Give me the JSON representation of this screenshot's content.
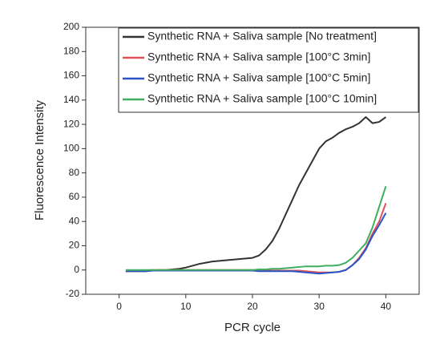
{
  "chart_data": {
    "type": "line",
    "x_label": "PCR cycle",
    "y_label": "Fluorescence Intensity",
    "xlim": [
      -5,
      45
    ],
    "xticks": [
      0,
      10,
      20,
      30,
      40
    ],
    "ylim": [
      -20,
      200
    ],
    "yticks": [
      -20,
      0,
      20,
      40,
      60,
      80,
      100,
      120,
      140,
      160,
      180,
      200
    ],
    "legend_position": "upper left",
    "x": [
      1,
      2,
      3,
      4,
      5,
      6,
      7,
      8,
      9,
      10,
      11,
      12,
      13,
      14,
      15,
      16,
      17,
      18,
      19,
      20,
      21,
      22,
      23,
      24,
      25,
      26,
      27,
      28,
      29,
      30,
      31,
      32,
      33,
      34,
      35,
      36,
      37,
      38,
      39,
      40
    ],
    "series": [
      {
        "name": "Synthetic RNA + Saliva sample [No treatment]",
        "color": "#333333",
        "values": [
          -1,
          -1,
          -1,
          -1,
          -0.5,
          0,
          0,
          0.5,
          1,
          2,
          3.5,
          5,
          6,
          7,
          7.5,
          8,
          8.5,
          9,
          9.5,
          10,
          12,
          17,
          24,
          34,
          46,
          58,
          70,
          80,
          90,
          100,
          106,
          109,
          113,
          116,
          118,
          121,
          126,
          121,
          122,
          126
        ]
      },
      {
        "name": "Synthetic RNA + Saliva sample [100°C 3min]",
        "color": "#e0505a",
        "values": [
          -1,
          -1,
          -1,
          -0.5,
          0,
          0,
          0,
          0,
          0,
          0,
          0,
          0,
          0,
          0,
          0,
          0,
          0,
          0,
          0,
          0,
          -0.5,
          -0.5,
          -0.5,
          -0.5,
          -0.5,
          -0.5,
          -0.5,
          -1,
          -1.5,
          -2,
          -2,
          -2,
          -1.5,
          0,
          4,
          10,
          18,
          30,
          40,
          55
        ]
      },
      {
        "name": "Synthetic RNA + Saliva sample [100°C 5min]",
        "color": "#2b55c7",
        "values": [
          -1,
          -1,
          -1,
          -1,
          -0.5,
          -0.5,
          -0.5,
          -0.5,
          -0.5,
          -0.5,
          -0.5,
          -0.5,
          -0.5,
          -0.5,
          -0.5,
          -0.5,
          -0.5,
          -0.5,
          -0.5,
          -0.5,
          -1,
          -1,
          -1,
          -1,
          -1,
          -1,
          -1.5,
          -2,
          -2.5,
          -3,
          -2.5,
          -2,
          -1.5,
          0,
          4,
          9,
          17,
          28,
          37,
          47
        ]
      },
      {
        "name": "Synthetic RNA + Saliva sample [100°C 10min]",
        "color": "#3fae5f",
        "values": [
          0,
          0,
          0,
          0,
          0,
          0,
          0,
          0,
          0,
          0,
          0,
          0,
          0,
          0,
          0,
          0,
          0,
          0,
          0,
          0,
          0.5,
          0.5,
          1,
          1,
          1.5,
          2,
          2.5,
          3,
          3,
          3,
          3.5,
          3.5,
          4,
          6,
          10,
          16,
          22,
          35,
          52,
          69
        ]
      }
    ]
  }
}
